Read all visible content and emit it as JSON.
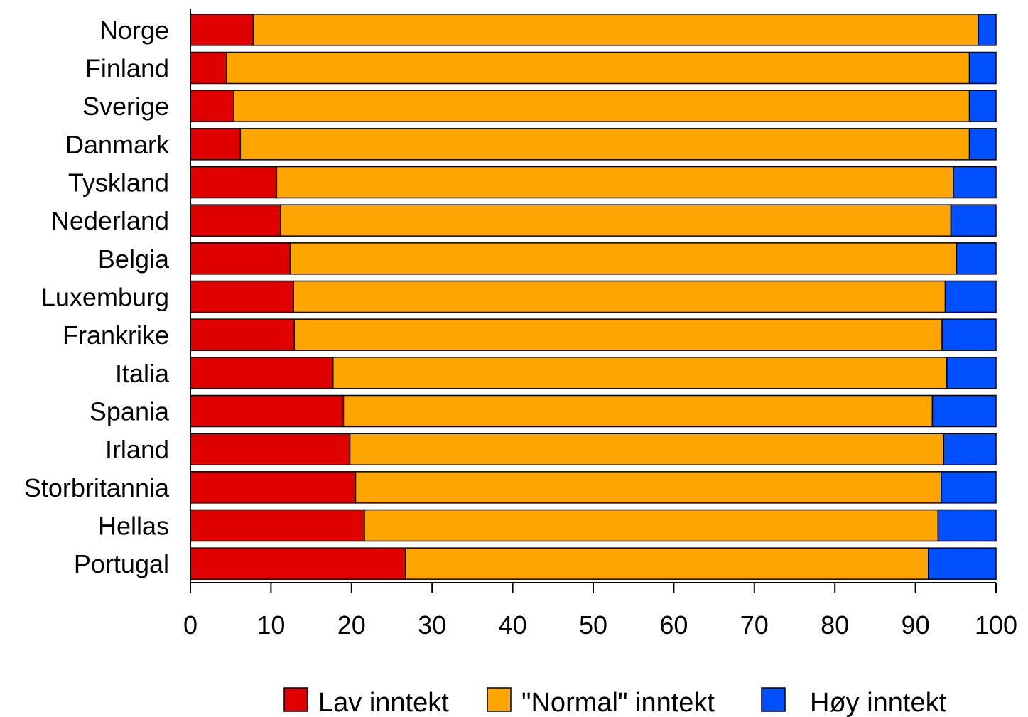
{
  "chart_data": {
    "type": "bar",
    "orientation": "horizontal",
    "stacked": true,
    "title": "",
    "xlabel": "",
    "ylabel": "",
    "xlim": [
      0,
      100
    ],
    "xticks": [
      0,
      10,
      20,
      30,
      40,
      50,
      60,
      70,
      80,
      90,
      100
    ],
    "grid": false,
    "legend_position": "bottom",
    "categories": [
      "Norge",
      "Finland",
      "Sverige",
      "Danmark",
      "Tyskland",
      "Nederland",
      "Belgia",
      "Luxemburg",
      "Frankrike",
      "Italia",
      "Spania",
      "Irland",
      "Storbritannia",
      "Hellas",
      "Portugal"
    ],
    "series": [
      {
        "name": "Lav inntekt",
        "color": "#e00000",
        "values": [
          7.8,
          4.5,
          5.4,
          6.2,
          10.7,
          11.2,
          12.4,
          12.8,
          12.9,
          17.7,
          19.0,
          19.8,
          20.5,
          21.6,
          26.7
        ]
      },
      {
        "name": "\"Normal\" inntekt",
        "color": "#ffa500",
        "values": [
          90.0,
          92.2,
          91.3,
          90.5,
          84.0,
          83.2,
          82.7,
          80.9,
          80.4,
          76.2,
          73.1,
          73.7,
          72.7,
          71.2,
          64.9
        ]
      },
      {
        "name": "Høy inntekt",
        "color": "#0050ff",
        "values": [
          2.2,
          3.3,
          3.3,
          3.3,
          5.3,
          5.6,
          4.9,
          6.3,
          6.7,
          6.1,
          7.9,
          6.5,
          6.8,
          7.2,
          8.4
        ]
      }
    ]
  }
}
